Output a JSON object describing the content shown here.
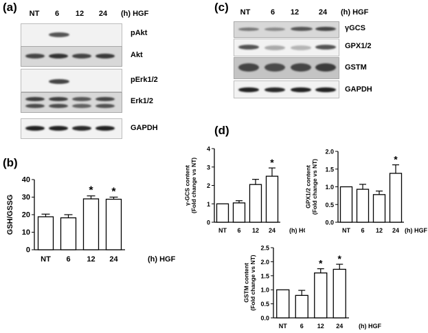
{
  "panels": {
    "a": "(a)",
    "b": "(b)",
    "c": "(c)",
    "d": "(d)"
  },
  "lanes": [
    "NT",
    "6",
    "12",
    "24"
  ],
  "unit": "(h) HGF",
  "blot_a": [
    "pAkt",
    "Akt",
    "pErk1/2",
    "Erk1/2",
    "GAPDH"
  ],
  "blot_c": [
    "γGCS",
    "GPX1/2",
    "GSTM",
    "GAPDH"
  ],
  "chart_data": [
    {
      "type": "bar",
      "panel": "(b)",
      "categories": [
        "NT",
        "6",
        "12",
        "24"
      ],
      "values": [
        18.8,
        18.2,
        29.0,
        28.8
      ],
      "errors": [
        1.5,
        1.8,
        1.7,
        1.2
      ],
      "significant": [
        false,
        false,
        true,
        true
      ],
      "ylabel": "GSH/GSSG",
      "xlabel": "(h) HGF",
      "ylim": [
        0,
        40
      ],
      "yticks": [
        0,
        10,
        20,
        30,
        40
      ]
    },
    {
      "type": "bar",
      "panel": "(d)",
      "categories": [
        "NT",
        "6",
        "12",
        "24"
      ],
      "values": [
        1.0,
        1.05,
        2.05,
        2.5
      ],
      "errors": [
        0.0,
        0.12,
        0.28,
        0.45
      ],
      "significant": [
        false,
        false,
        false,
        true
      ],
      "ylabel": "γ-GCS content (Fold change vs NT)",
      "xlabel": "(h) HGF",
      "ylim": [
        0,
        4
      ],
      "yticks": [
        0,
        1,
        2,
        3,
        4
      ]
    },
    {
      "type": "bar",
      "panel": "(d)",
      "categories": [
        "NT",
        "6",
        "12",
        "24"
      ],
      "values": [
        1.0,
        0.93,
        0.78,
        1.38
      ],
      "errors": [
        0.0,
        0.14,
        0.1,
        0.24
      ],
      "significant": [
        false,
        false,
        false,
        true
      ],
      "ylabel": "GPX1/2 content (Fold change vs NT)",
      "xlabel": "(h) HGF",
      "ylim": [
        0,
        2
      ],
      "yticks": [
        0.0,
        0.5,
        1.0,
        1.5,
        2.0
      ]
    },
    {
      "type": "bar",
      "panel": "(d)",
      "categories": [
        "NT",
        "6",
        "12",
        "24"
      ],
      "values": [
        1.0,
        0.8,
        1.6,
        1.73
      ],
      "errors": [
        0.0,
        0.18,
        0.15,
        0.18
      ],
      "significant": [
        false,
        false,
        true,
        true
      ],
      "ylabel": "GSTM content (Fold change vs NT)",
      "xlabel": "(h) HGF",
      "ylim": [
        0,
        2.5
      ],
      "yticks": [
        0.0,
        0.5,
        1.0,
        1.5,
        2.0,
        2.5
      ]
    }
  ]
}
